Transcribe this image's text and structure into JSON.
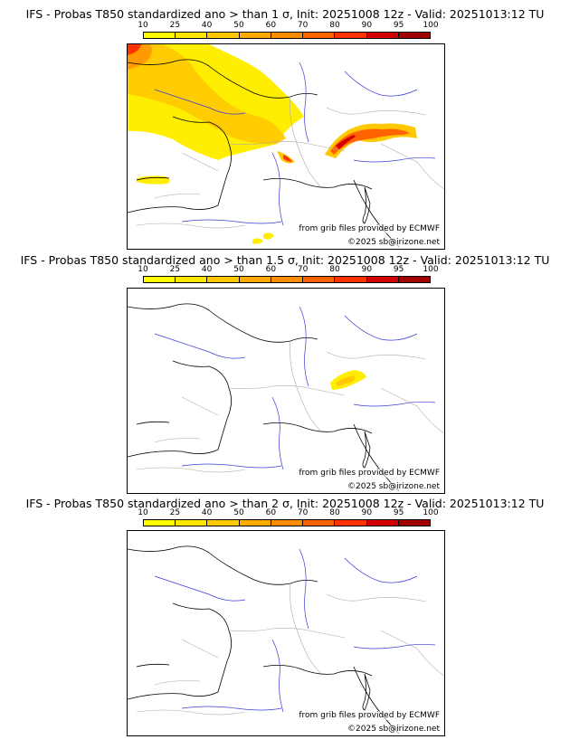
{
  "colorbar": {
    "ticks": [
      "10",
      "25",
      "40",
      "50",
      "60",
      "70",
      "80",
      "90",
      "95",
      "100"
    ],
    "colors": [
      "#ffff00",
      "#ffe600",
      "#ffc800",
      "#ffaa00",
      "#ff8c00",
      "#ff6400",
      "#ff3200",
      "#d20000",
      "#a00000",
      "#6e0000"
    ]
  },
  "panels": [
    {
      "title": "IFS - Probas T850  standardized ano > than 1 σ, Init: 20251008 12z - Valid: 20251013:12 TU",
      "source": "from grib files provided by ECMWF",
      "copyright": "©2025 sb@irizone.net"
    },
    {
      "title": "IFS - Probas T850  standardized ano > than 1.5 σ, Init: 20251008 12z - Valid: 20251013:12 TU",
      "source": "from grib files provided by ECMWF",
      "copyright": "©2025 sb@irizone.net"
    },
    {
      "title": "IFS - Probas T850  standardized ano > than 2 σ, Init: 20251008 12z - Valid: 20251013:12 TU",
      "source": "from grib files provided by ECMWF",
      "copyright": "©2025 sb@irizone.net"
    }
  ],
  "colors": {
    "coast": "#000000",
    "border": "#aaaaaa",
    "river": "#3a3ad8"
  }
}
